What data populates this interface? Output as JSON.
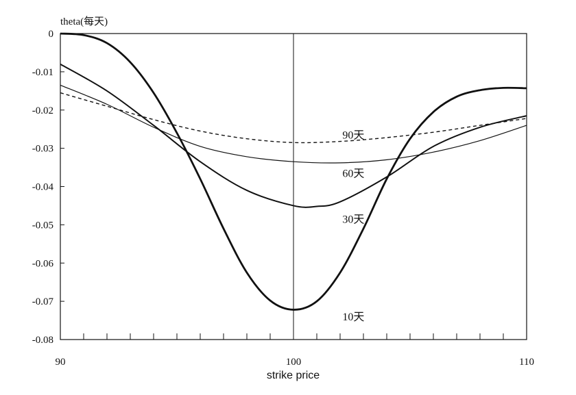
{
  "chart_data": {
    "type": "line",
    "ylabel": "theta(每天)",
    "xlabel": "strike price",
    "xlim": [
      90,
      110
    ],
    "ylim": [
      -0.08,
      0
    ],
    "x_ticks": [
      "90",
      "100",
      "110"
    ],
    "y_ticks": [
      "0",
      "-0.01",
      "-0.02",
      "-0.03",
      "-0.04",
      "-0.05",
      "-0.06",
      "-0.07",
      "-0.08"
    ],
    "vertical_line_x": 100,
    "grid": false,
    "series": [
      {
        "name": "90天",
        "style": "dashed",
        "x": [
          90,
          92,
          94,
          96,
          98,
          100,
          102,
          104,
          106,
          108,
          110
        ],
        "y": [
          -0.0155,
          -0.019,
          -0.0225,
          -0.0255,
          -0.0275,
          -0.0285,
          -0.0282,
          -0.0272,
          -0.0258,
          -0.024,
          -0.0222
        ]
      },
      {
        "name": "60天",
        "style": "thin",
        "x": [
          90,
          92,
          94,
          96,
          98,
          100,
          102,
          104,
          106,
          108,
          110
        ],
        "y": [
          -0.0135,
          -0.0185,
          -0.0245,
          -0.0295,
          -0.0322,
          -0.0335,
          -0.0338,
          -0.033,
          -0.031,
          -0.028,
          -0.024
        ]
      },
      {
        "name": "30天",
        "style": "medium",
        "x": [
          90,
          92,
          94,
          96,
          98,
          100,
          101,
          102,
          104,
          106,
          108,
          110
        ],
        "y": [
          -0.008,
          -0.015,
          -0.024,
          -0.0335,
          -0.041,
          -0.045,
          -0.0452,
          -0.044,
          -0.0375,
          -0.0295,
          -0.0245,
          -0.0215
        ]
      },
      {
        "name": "10天",
        "style": "thick",
        "x": [
          90,
          91,
          92,
          93,
          94,
          95,
          96,
          97,
          98,
          99,
          100,
          101,
          102,
          103,
          104,
          105,
          106,
          107,
          108,
          109,
          110
        ],
        "y": [
          0,
          -0.0004,
          -0.0025,
          -0.0075,
          -0.0155,
          -0.026,
          -0.038,
          -0.051,
          -0.0625,
          -0.0698,
          -0.0722,
          -0.07,
          -0.0625,
          -0.051,
          -0.038,
          -0.0275,
          -0.0205,
          -0.0165,
          -0.0148,
          -0.0142,
          -0.0143
        ]
      }
    ],
    "series_label_positions": {
      "90天": [
        102.1,
        -0.0275
      ],
      "60天": [
        102.1,
        -0.0375
      ],
      "30天": [
        102.1,
        -0.0495
      ],
      "10天": [
        102.1,
        -0.075
      ]
    }
  }
}
